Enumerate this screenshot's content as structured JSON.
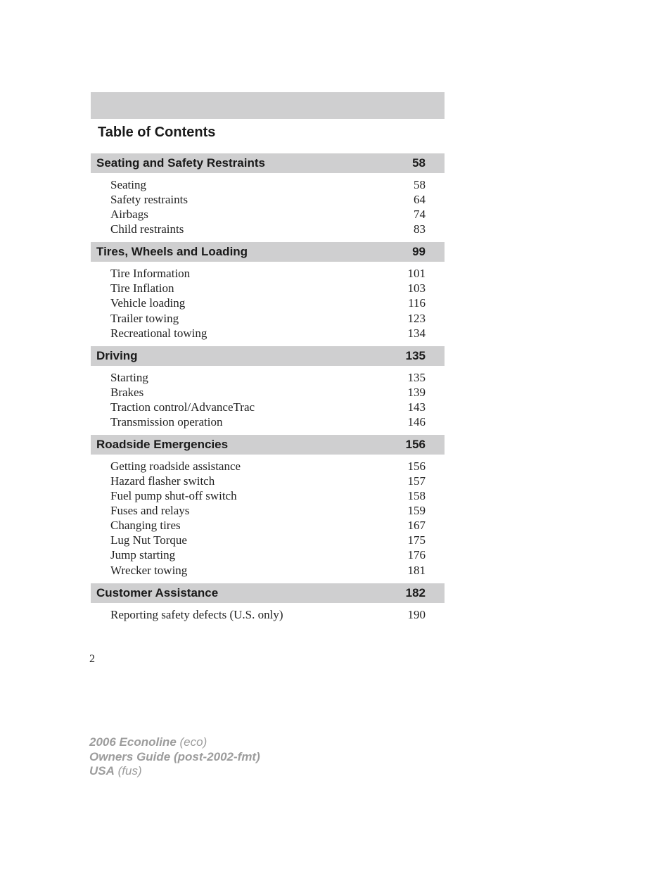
{
  "title": "Table of Contents",
  "page_number": "2",
  "colors": {
    "header_bg": "#cfcfd0",
    "text": "#1a1a1a",
    "footer_text": "#9c9c9c",
    "page_bg": "#ffffff"
  },
  "typography": {
    "title_font": "Arial",
    "title_size_pt": 15,
    "title_weight": "bold",
    "section_font": "Arial",
    "section_size_pt": 13,
    "section_weight": "bold",
    "entry_font": "Times New Roman",
    "entry_size_pt": 13,
    "footer_size_pt": 13
  },
  "sections": [
    {
      "title": "Seating and Safety Restraints",
      "page": "58",
      "entries": [
        {
          "label": "Seating",
          "page": "58"
        },
        {
          "label": "Safety restraints",
          "page": "64"
        },
        {
          "label": "Airbags",
          "page": "74"
        },
        {
          "label": "Child restraints",
          "page": "83"
        }
      ]
    },
    {
      "title": "Tires, Wheels and Loading",
      "page": "99",
      "entries": [
        {
          "label": "Tire Information",
          "page": "101"
        },
        {
          "label": "Tire Inflation",
          "page": "103"
        },
        {
          "label": "Vehicle loading",
          "page": "116"
        },
        {
          "label": "Trailer towing",
          "page": "123"
        },
        {
          "label": "Recreational towing",
          "page": "134"
        }
      ]
    },
    {
      "title": "Driving",
      "page": "135",
      "entries": [
        {
          "label": "Starting",
          "page": "135"
        },
        {
          "label": "Brakes",
          "page": "139"
        },
        {
          "label": "Traction control/AdvanceTrac",
          "page": "143"
        },
        {
          "label": "Transmission operation",
          "page": "146"
        }
      ]
    },
    {
      "title": "Roadside Emergencies",
      "page": "156",
      "entries": [
        {
          "label": "Getting roadside assistance",
          "page": "156"
        },
        {
          "label": "Hazard flasher switch",
          "page": "157"
        },
        {
          "label": "Fuel pump shut-off switch",
          "page": "158"
        },
        {
          "label": "Fuses and relays",
          "page": "159"
        },
        {
          "label": "Changing tires",
          "page": "167"
        },
        {
          "label": "Lug Nut Torque",
          "page": "175"
        },
        {
          "label": "Jump starting",
          "page": "176"
        },
        {
          "label": "Wrecker towing",
          "page": "181"
        }
      ]
    },
    {
      "title": "Customer Assistance",
      "page": "182",
      "entries": [
        {
          "label": "Reporting safety defects (U.S. only)",
          "page": "190"
        }
      ]
    }
  ],
  "footer": {
    "line1_bold": "2006 Econoline",
    "line1_light": "(eco)",
    "line2_bold": "Owners Guide (post-2002-fmt)",
    "line3_bold": "USA",
    "line3_light": "(fus)"
  }
}
